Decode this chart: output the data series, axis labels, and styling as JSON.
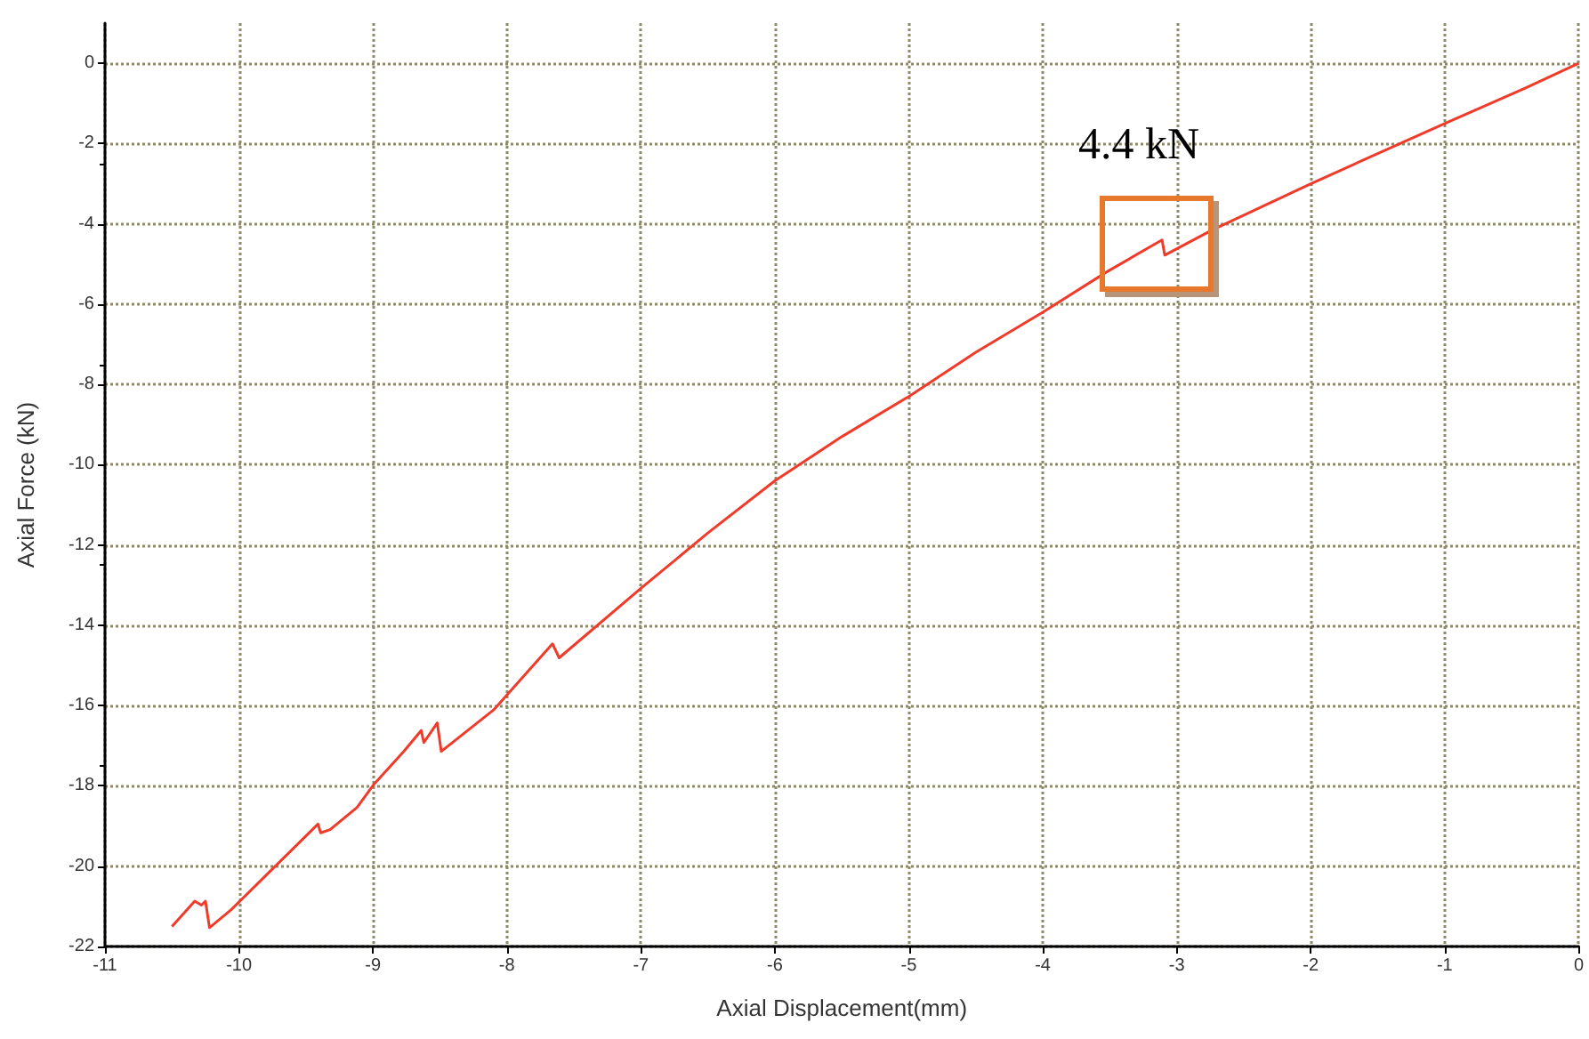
{
  "chart_data": {
    "type": "line",
    "xlabel": "Axial Displacement(mm)",
    "ylabel": "Axial Force (kN)",
    "xlim": [
      -11,
      0
    ],
    "ylim": [
      -22,
      1
    ],
    "xticks": [
      -11,
      -10,
      -9,
      -8,
      -7,
      -6,
      -5,
      -4,
      -3,
      -2,
      -1,
      0
    ],
    "yticks": [
      -22,
      -20,
      -18,
      -16,
      -14,
      -12,
      -10,
      -8,
      -6,
      -4,
      -2,
      0
    ],
    "grid": true,
    "marker": "none",
    "line_style": "solid",
    "series": [
      {
        "color": "#f03a2a",
        "x": [
          -10.5,
          -10.33,
          -10.28,
          -10.25,
          -10.22,
          -10.06,
          -9.41,
          -9.39,
          -9.32,
          -9.12,
          -8.99,
          -8.77,
          -8.64,
          -8.62,
          -8.52,
          -8.49,
          -8.1,
          -7.66,
          -7.61,
          -7,
          -6.5,
          -6,
          -5.5,
          -5,
          -4.5,
          -4,
          -3.52,
          -3.11,
          -3.09,
          -2.74,
          -2,
          -1,
          -0.4,
          0
        ],
        "values": [
          -21.5,
          -20.87,
          -20.97,
          -20.87,
          -21.53,
          -21.09,
          -18.95,
          -19.17,
          -19.09,
          -18.54,
          -17.95,
          -17.14,
          -16.62,
          -16.92,
          -16.43,
          -17.14,
          -16.11,
          -14.46,
          -14.81,
          -13.08,
          -11.7,
          -10.4,
          -9.3,
          -8.3,
          -7.2,
          -6.2,
          -5.19,
          -4.4,
          -4.78,
          -4.16,
          -3.0,
          -1.5,
          -0.62,
          0
        ]
      }
    ],
    "annotations": [
      {
        "text": "4.4 kN",
        "x": -3.11,
        "y": -4.4
      }
    ]
  }
}
